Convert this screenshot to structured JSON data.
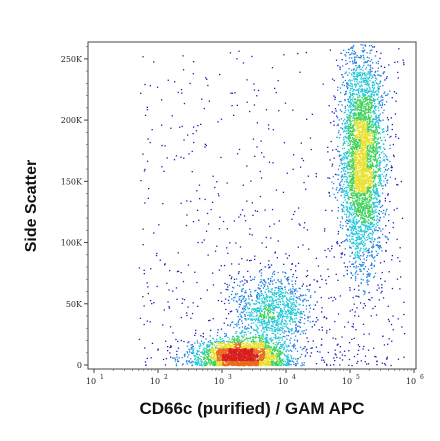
{
  "chart_data": {
    "type": "scatter",
    "style": "flow-cytometry dot plot, density-colored (pseudocolor)",
    "xlabel": "CD66c (purified) / GAM APC",
    "ylabel": "Side Scatter",
    "x_scale": "log",
    "y_scale": "linear",
    "xlim": [
      10,
      1000000
    ],
    "ylim": [
      0,
      262144
    ],
    "x_ticks": [
      {
        "base": "10",
        "exp": "1",
        "value": 10
      },
      {
        "base": "10",
        "exp": "2",
        "value": 100
      },
      {
        "base": "10",
        "exp": "3",
        "value": 1000
      },
      {
        "base": "10",
        "exp": "4",
        "value": 10000
      },
      {
        "base": "10",
        "exp": "5",
        "value": 100000
      },
      {
        "base": "10",
        "exp": "6",
        "value": 1000000
      }
    ],
    "y_ticks": [
      {
        "label": "0",
        "value": 0
      },
      {
        "label": "50K",
        "value": 50000
      },
      {
        "label": "100K",
        "value": 100000
      },
      {
        "label": "150K",
        "value": 150000
      },
      {
        "label": "200K",
        "value": 200000
      },
      {
        "label": "250K",
        "value": 250000
      }
    ],
    "grid": false,
    "legend": "none",
    "populations": [
      {
        "description": "negative population",
        "x_center": 2000,
        "x_spread_decades": 0.35,
        "y_center": 8000,
        "y_spread": 7000,
        "events": 2600
      },
      {
        "description": "intermediate population",
        "x_center": 6000,
        "x_spread_decades": 0.3,
        "y_center": 45000,
        "y_spread": 15000,
        "events": 1100
      },
      {
        "description": "positive population",
        "x_center": 150000,
        "x_spread_decades": 0.17,
        "y_center": 170000,
        "y_spread": 45000,
        "events": 3800
      },
      {
        "description": "diffuse background events",
        "x_range": [
          50,
          700000
        ],
        "y_range": [
          0,
          260000
        ],
        "events": 700
      }
    ],
    "density_colors": [
      "#1c1cb4",
      "#1f7fe0",
      "#22c8d8",
      "#3fd25a",
      "#e8e02a",
      "#e86b1e",
      "#d81e1e"
    ]
  }
}
